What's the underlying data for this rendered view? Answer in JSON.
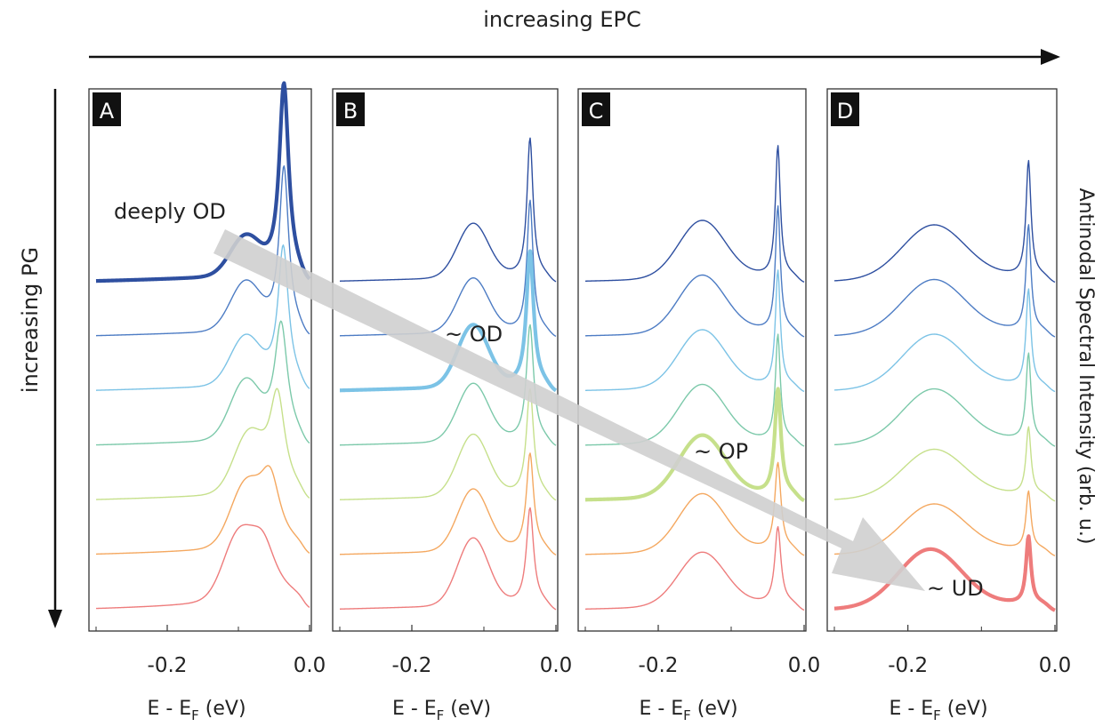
{
  "top_label": "increasing EPC",
  "left_label": "increasing PG",
  "right_label": "Antinodal Spectral Intensity (arb. u.)",
  "colors": {
    "palette": [
      "#2e4fa0",
      "#4d7cc4",
      "#7cc3e6",
      "#7cc9aa",
      "#c6e08b",
      "#f4a860",
      "#ee7c7c"
    ],
    "arrow": "#cfcfcf",
    "frame": "#333333"
  },
  "chart_data": [
    {
      "type": "line",
      "panel_label": "A",
      "xlabel_prefix": "E - E",
      "xlabel_sub": "F",
      "xlabel_suffix": " (eV)",
      "xlim": [
        -0.3,
        0.0
      ],
      "xticks": [
        -0.2,
        0.0
      ],
      "xtick_labels": [
        "-0.2",
        "0.0"
      ],
      "highlight_index": 0,
      "annotation": "deeply OD",
      "series": [
        {
          "peak_e": -0.036,
          "peak_height": 1.0,
          "peak_width": 0.008,
          "hump_e": -0.09,
          "hump_height": 0.2,
          "hump_width": 0.03
        },
        {
          "peak_e": -0.036,
          "peak_height": 0.85,
          "peak_width": 0.008,
          "hump_e": -0.09,
          "hump_height": 0.25,
          "hump_width": 0.03
        },
        {
          "peak_e": -0.037,
          "peak_height": 0.72,
          "peak_width": 0.009,
          "hump_e": -0.09,
          "hump_height": 0.25,
          "hump_width": 0.03
        },
        {
          "peak_e": -0.04,
          "peak_height": 0.6,
          "peak_width": 0.011,
          "hump_e": -0.09,
          "hump_height": 0.3,
          "hump_width": 0.03
        },
        {
          "peak_e": -0.045,
          "peak_height": 0.5,
          "peak_width": 0.013,
          "hump_e": -0.085,
          "hump_height": 0.3,
          "hump_width": 0.03
        },
        {
          "peak_e": -0.055,
          "peak_height": 0.35,
          "peak_width": 0.018,
          "hump_e": -0.09,
          "hump_height": 0.3,
          "hump_width": 0.03
        },
        {
          "peak_e": -0.065,
          "peak_height": 0.3,
          "peak_width": 0.025,
          "hump_e": -0.1,
          "hump_height": 0.3,
          "hump_width": 0.03
        }
      ]
    },
    {
      "type": "line",
      "panel_label": "B",
      "xlabel_prefix": "E - E",
      "xlabel_sub": "F",
      "xlabel_suffix": " (eV)",
      "xlim": [
        -0.3,
        0.0
      ],
      "xticks": [
        -0.2,
        0.0
      ],
      "xtick_labels": [
        "-0.2",
        "0.0"
      ],
      "highlight_index": 2,
      "annotation": "~ OD",
      "series": [
        {
          "peak_e": -0.036,
          "peak_height": 0.72,
          "peak_width": 0.005,
          "hump_e": -0.115,
          "hump_height": 0.28,
          "hump_width": 0.03
        },
        {
          "peak_e": -0.036,
          "peak_height": 0.68,
          "peak_width": 0.005,
          "hump_e": -0.115,
          "hump_height": 0.28,
          "hump_width": 0.03
        },
        {
          "peak_e": -0.036,
          "peak_height": 0.7,
          "peak_width": 0.006,
          "hump_e": -0.115,
          "hump_height": 0.32,
          "hump_width": 0.03
        },
        {
          "peak_e": -0.036,
          "peak_height": 0.6,
          "peak_width": 0.006,
          "hump_e": -0.115,
          "hump_height": 0.3,
          "hump_width": 0.03
        },
        {
          "peak_e": -0.036,
          "peak_height": 0.55,
          "peak_width": 0.006,
          "hump_e": -0.115,
          "hump_height": 0.32,
          "hump_width": 0.03
        },
        {
          "peak_e": -0.036,
          "peak_height": 0.5,
          "peak_width": 0.006,
          "hump_e": -0.115,
          "hump_height": 0.32,
          "hump_width": 0.03
        },
        {
          "peak_e": -0.036,
          "peak_height": 0.5,
          "peak_width": 0.006,
          "hump_e": -0.115,
          "hump_height": 0.35,
          "hump_width": 0.03
        }
      ]
    },
    {
      "type": "line",
      "panel_label": "C",
      "xlabel_prefix": "E - E",
      "xlabel_sub": "F",
      "xlabel_suffix": " (eV)",
      "xlim": [
        -0.3,
        0.0
      ],
      "xticks": [
        -0.2,
        0.0
      ],
      "xtick_labels": [
        "-0.2",
        "0.0"
      ],
      "highlight_index": 4,
      "annotation": "~ OP",
      "series": [
        {
          "peak_e": -0.036,
          "peak_height": 0.68,
          "peak_width": 0.004,
          "hump_e": -0.14,
          "hump_height": 0.3,
          "hump_width": 0.045
        },
        {
          "peak_e": -0.036,
          "peak_height": 0.65,
          "peak_width": 0.004,
          "hump_e": -0.14,
          "hump_height": 0.3,
          "hump_width": 0.045
        },
        {
          "peak_e": -0.036,
          "peak_height": 0.6,
          "peak_width": 0.004,
          "hump_e": -0.14,
          "hump_height": 0.3,
          "hump_width": 0.045
        },
        {
          "peak_e": -0.036,
          "peak_height": 0.55,
          "peak_width": 0.004,
          "hump_e": -0.14,
          "hump_height": 0.3,
          "hump_width": 0.045
        },
        {
          "peak_e": -0.036,
          "peak_height": 0.55,
          "peak_width": 0.005,
          "hump_e": -0.14,
          "hump_height": 0.32,
          "hump_width": 0.045
        },
        {
          "peak_e": -0.036,
          "peak_height": 0.45,
          "peak_width": 0.005,
          "hump_e": -0.14,
          "hump_height": 0.3,
          "hump_width": 0.045
        },
        {
          "peak_e": -0.036,
          "peak_height": 0.4,
          "peak_width": 0.005,
          "hump_e": -0.14,
          "hump_height": 0.28,
          "hump_width": 0.045
        }
      ]
    },
    {
      "type": "line",
      "panel_label": "D",
      "xlabel_prefix": "E - E",
      "xlabel_sub": "F",
      "xlabel_suffix": " (eV)",
      "xlim": [
        -0.3,
        0.0
      ],
      "xticks": [
        -0.2,
        0.0
      ],
      "xtick_labels": [
        "-0.2",
        "0.0"
      ],
      "highlight_index": 6,
      "annotation": "~ UD",
      "series": [
        {
          "peak_e": -0.036,
          "peak_height": 0.6,
          "peak_width": 0.004,
          "hump_e": -0.165,
          "hump_height": 0.28,
          "hump_width": 0.06
        },
        {
          "peak_e": -0.036,
          "peak_height": 0.55,
          "peak_width": 0.004,
          "hump_e": -0.165,
          "hump_height": 0.28,
          "hump_width": 0.06
        },
        {
          "peak_e": -0.036,
          "peak_height": 0.5,
          "peak_width": 0.004,
          "hump_e": -0.165,
          "hump_height": 0.28,
          "hump_width": 0.06
        },
        {
          "peak_e": -0.036,
          "peak_height": 0.45,
          "peak_width": 0.004,
          "hump_e": -0.165,
          "hump_height": 0.28,
          "hump_width": 0.06
        },
        {
          "peak_e": -0.036,
          "peak_height": 0.35,
          "peak_width": 0.004,
          "hump_e": -0.165,
          "hump_height": 0.25,
          "hump_width": 0.06
        },
        {
          "peak_e": -0.036,
          "peak_height": 0.3,
          "peak_width": 0.004,
          "hump_e": -0.165,
          "hump_height": 0.25,
          "hump_width": 0.06
        },
        {
          "peak_e": -0.036,
          "peak_height": 0.35,
          "peak_width": 0.004,
          "hump_e": -0.17,
          "hump_height": 0.3,
          "hump_width": 0.06
        }
      ]
    }
  ]
}
